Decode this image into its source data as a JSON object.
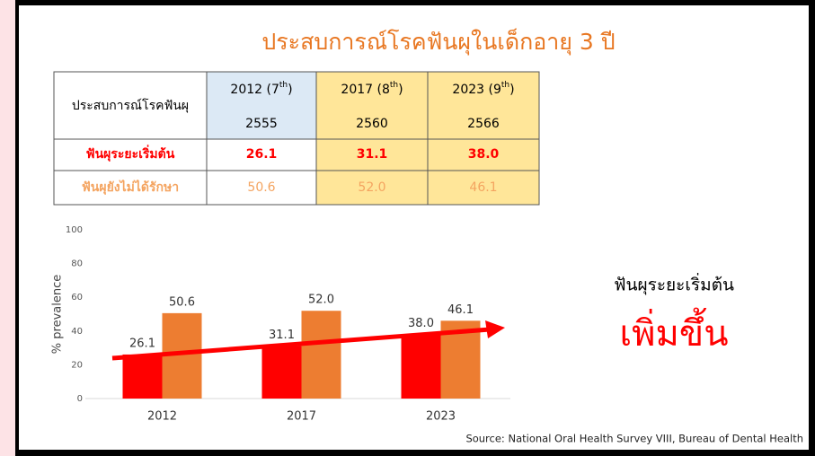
{
  "title": "ประสบการณ์โรคฟันผุในเด็กอายุ 3 ปี",
  "table": {
    "corner": "ประสบการณ์โรคฟันผุ",
    "columns": [
      {
        "head": "2012 (7",
        "sup": "th",
        "close": ")",
        "year": "2555"
      },
      {
        "head": "2017 (8",
        "sup": "th",
        "close": ")",
        "year": "2560"
      },
      {
        "head": "2023 (9",
        "sup": "th",
        "close": ")",
        "year": "2566"
      }
    ],
    "rows": [
      {
        "label": "ฟันผุระยะเริ่มต้น",
        "cells": [
          "26.1",
          "31.1",
          "38.0"
        ]
      },
      {
        "label": "ฟันผุยังไม่ได้รักษา",
        "cells": [
          "50.6",
          "52.0",
          "46.1"
        ]
      }
    ]
  },
  "chart_data": {
    "type": "bar",
    "ylabel": "% prevalence",
    "categories": [
      "2012",
      "2017",
      "2023"
    ],
    "series": [
      {
        "name": "ฟันผุระยะเริ่มต้น",
        "color": "#ff0000",
        "values": [
          26.1,
          31.1,
          38.0
        ],
        "value_labels": [
          "26.1",
          "31.1",
          "38.0"
        ]
      },
      {
        "name": "ฟันผุยังไม่ได้รักษา",
        "color": "#ed7d31",
        "values": [
          50.6,
          52.0,
          46.1
        ],
        "value_labels": [
          "50.6",
          "52.0",
          "46.1"
        ]
      }
    ],
    "ylim": [
      0,
      100
    ],
    "yticks": [
      0,
      20,
      40,
      60,
      80,
      100
    ],
    "grid": false
  },
  "annotation": {
    "line1": "ฟันผุระยะเริ่มต้น",
    "line2": "เพิ่มขึ้น"
  },
  "source": "Source: National Oral Health Survey VIII, Bureau of Dental Health"
}
